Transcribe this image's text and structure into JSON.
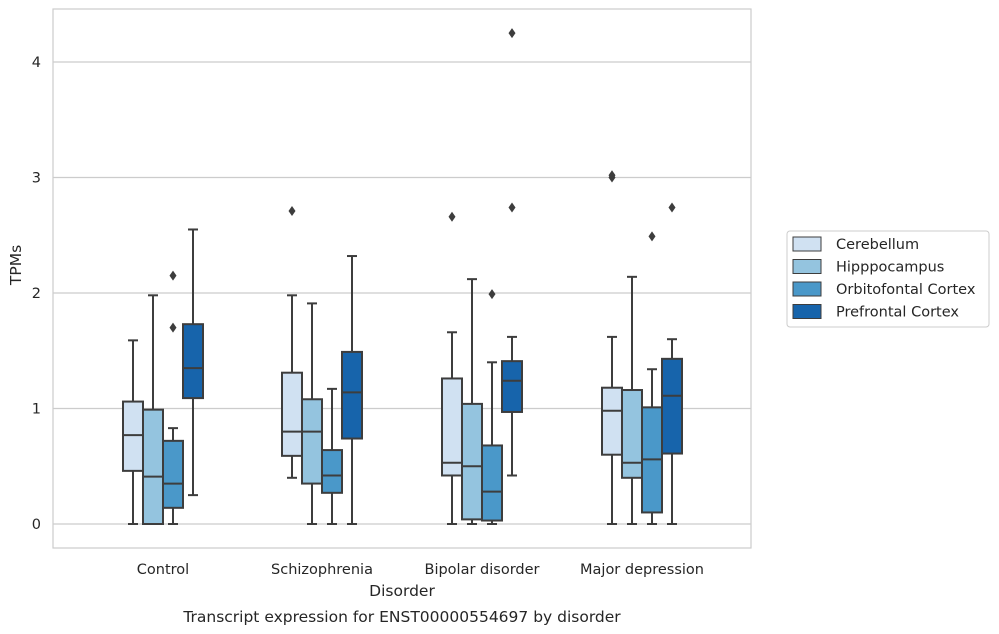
{
  "chart_data": {
    "type": "box",
    "xlabel": "Disorder",
    "ylabel": "TPMs",
    "caption": "Transcript expression for ENST00000554697 by disorder",
    "ylim": [
      -0.2,
      4.45
    ],
    "yticks": [
      0,
      1,
      2,
      3,
      4
    ],
    "grid": "horizontal",
    "legend_position": "right",
    "categories": [
      "Control",
      "Schizophrenia",
      "Bipolar disorder",
      "Major depression"
    ],
    "series": [
      {
        "name": "Cerebellum",
        "color": "#d0e1f2",
        "boxes": [
          {
            "whislo": 0.0,
            "q1": 0.46,
            "med": 0.77,
            "q3": 1.06,
            "whishi": 1.59,
            "fliers": []
          },
          {
            "whislo": 0.4,
            "q1": 0.59,
            "med": 0.8,
            "q3": 1.31,
            "whishi": 1.98,
            "fliers": [
              2.71
            ]
          },
          {
            "whislo": 0.0,
            "q1": 0.42,
            "med": 0.53,
            "q3": 1.26,
            "whishi": 1.66,
            "fliers": [
              2.66
            ]
          },
          {
            "whislo": 0.0,
            "q1": 0.6,
            "med": 0.98,
            "q3": 1.18,
            "whishi": 1.62,
            "fliers": [
              3.0,
              3.02
            ]
          }
        ]
      },
      {
        "name": "Hipppocampus",
        "color": "#94c4df",
        "boxes": [
          {
            "whislo": 0.0,
            "q1": 0.0,
            "med": 0.41,
            "q3": 0.99,
            "whishi": 1.98,
            "fliers": []
          },
          {
            "whislo": 0.0,
            "q1": 0.35,
            "med": 0.8,
            "q3": 1.08,
            "whishi": 1.91,
            "fliers": []
          },
          {
            "whislo": 0.0,
            "q1": 0.04,
            "med": 0.5,
            "q3": 1.04,
            "whishi": 2.12,
            "fliers": []
          },
          {
            "whislo": 0.0,
            "q1": 0.4,
            "med": 0.53,
            "q3": 1.16,
            "whishi": 2.14,
            "fliers": []
          }
        ]
      },
      {
        "name": "Orbitofontal Cortex",
        "color": "#4a98c9",
        "boxes": [
          {
            "whislo": 0.0,
            "q1": 0.14,
            "med": 0.35,
            "q3": 0.72,
            "whishi": 0.83,
            "fliers": [
              1.7,
              2.15
            ]
          },
          {
            "whislo": 0.0,
            "q1": 0.27,
            "med": 0.42,
            "q3": 0.64,
            "whishi": 1.17,
            "fliers": []
          },
          {
            "whislo": 0.0,
            "q1": 0.03,
            "med": 0.28,
            "q3": 0.68,
            "whishi": 1.4,
            "fliers": [
              1.99
            ]
          },
          {
            "whislo": 0.0,
            "q1": 0.1,
            "med": 0.56,
            "q3": 1.01,
            "whishi": 1.34,
            "fliers": [
              2.49
            ]
          }
        ]
      },
      {
        "name": "Prefrontal Cortex",
        "color": "#1764ab",
        "boxes": [
          {
            "whislo": 0.25,
            "q1": 1.09,
            "med": 1.35,
            "q3": 1.73,
            "whishi": 2.55,
            "fliers": []
          },
          {
            "whislo": 0.0,
            "q1": 0.74,
            "med": 1.14,
            "q3": 1.49,
            "whishi": 2.32,
            "fliers": []
          },
          {
            "whislo": 0.42,
            "q1": 0.97,
            "med": 1.24,
            "q3": 1.41,
            "whishi": 1.62,
            "fliers": [
              2.74,
              4.25
            ]
          },
          {
            "whislo": 0.0,
            "q1": 0.61,
            "med": 1.11,
            "q3": 1.43,
            "whishi": 1.6,
            "fliers": [
              2.74
            ]
          }
        ]
      }
    ]
  },
  "style": {
    "frame_color": "#cccccc",
    "grid_color": "#cccccc",
    "line_color": "#3d3d3d",
    "background": "#ffffff"
  }
}
